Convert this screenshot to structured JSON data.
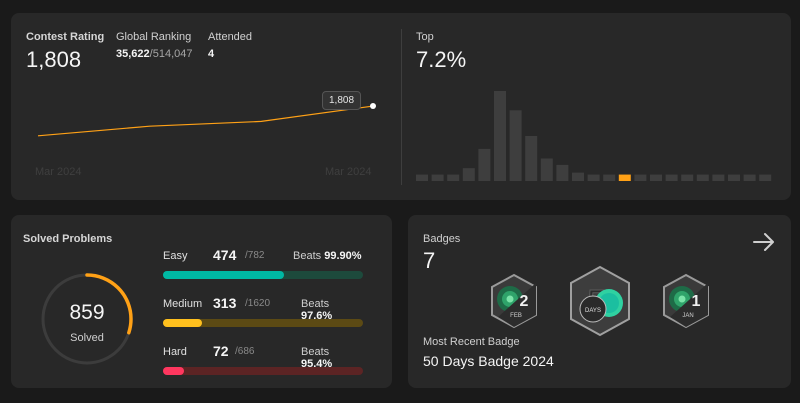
{
  "contest": {
    "rating_label": "Contest Rating",
    "rating_value": "1,808",
    "global_label": "Global Ranking",
    "global_rank": "35,622",
    "global_total": "/514,047",
    "attended_label": "Attended",
    "attended_value": "4",
    "axis_start": "Mar 2024",
    "axis_end": "Mar 2024",
    "tooltip": "1,808",
    "top_label": "Top",
    "top_value": "7.2%",
    "accent": "#ffa116"
  },
  "chart_data": [
    {
      "type": "line",
      "x": [
        1,
        2,
        3,
        4
      ],
      "values": [
        1560,
        1640,
        1680,
        1808
      ],
      "ylim": [
        1500,
        1850
      ],
      "xlabel": "",
      "ylabel": "",
      "title": ""
    },
    {
      "type": "bar",
      "values": [
        1,
        1,
        1,
        2,
        5,
        14,
        11,
        7,
        3.5,
        2.5,
        1.3,
        1,
        1,
        1,
        1,
        1,
        1,
        1,
        1,
        1,
        1,
        1,
        1
      ],
      "highlight_index": 13,
      "bar_color": "#3e3e3e",
      "highlight_color": "#ffa116",
      "title": "",
      "xlabel": "",
      "ylabel": ""
    }
  ],
  "solved": {
    "title": "Solved Problems",
    "total": "859",
    "total_label": "Solved",
    "ring_fraction": 0.3,
    "ring_color": "#ffa116",
    "difficulties": [
      {
        "name": "Easy",
        "count": "474",
        "total": "/782",
        "beats_label": "Beats",
        "beats": "99.90%",
        "fraction": 0.606,
        "color": "#00b8a3",
        "track": "#1d4a3c"
      },
      {
        "name": "Medium",
        "count": "313",
        "total": "/1620",
        "beats_label": "Beats",
        "beats": "97.6%",
        "fraction": 0.193,
        "color": "#ffc01e",
        "track": "#5c4a14"
      },
      {
        "name": "Hard",
        "count": "72",
        "total": "/686",
        "beats_label": "Beats",
        "beats": "95.4%",
        "fraction": 0.105,
        "color": "#ff375f",
        "track": "#5c2424"
      }
    ]
  },
  "badges": {
    "title": "Badges",
    "count": "7",
    "items": [
      {
        "name": "feb-badge",
        "number": "2",
        "month": "FEB"
      },
      {
        "name": "50-days-badge",
        "number": "50",
        "month": "DAYS"
      },
      {
        "name": "jan-badge",
        "number": "1",
        "month": "JAN"
      }
    ],
    "recent_label": "Most Recent Badge",
    "recent_value": "50 Days Badge 2024",
    "arrow_icon": "arrow-right-icon"
  }
}
